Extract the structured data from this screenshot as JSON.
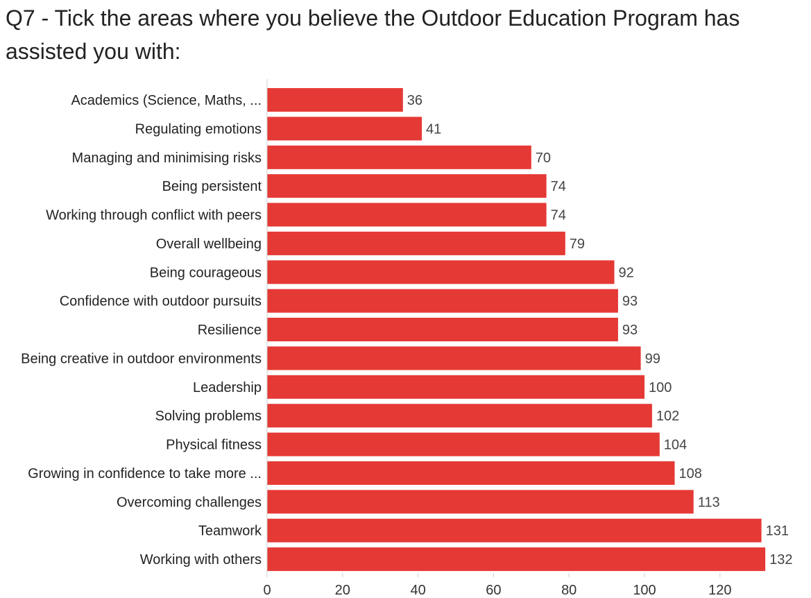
{
  "title": "Q7 - Tick the areas where you believe the Outdoor Education Program has assisted you with:",
  "colors": {
    "bar": "#e53935",
    "axis": "#cccccc"
  },
  "chart_data": {
    "type": "bar",
    "orientation": "horizontal",
    "categories": [
      "Academics (Science, Maths, ...",
      "Regulating emotions",
      "Managing and minimising risks",
      "Being persistent",
      "Working through conflict with peers",
      "Overall wellbeing",
      "Being courageous",
      "Confidence with outdoor pursuits",
      "Resilience",
      "Being creative in outdoor environments",
      "Leadership",
      "Solving problems",
      "Physical fitness",
      "Growing in confidence to take more ...",
      "Overcoming challenges",
      "Teamwork",
      "Working with others"
    ],
    "values": [
      36,
      41,
      70,
      74,
      74,
      79,
      92,
      93,
      93,
      99,
      100,
      102,
      104,
      108,
      113,
      131,
      132
    ],
    "xlim": [
      0,
      140
    ],
    "xticks": [
      0,
      20,
      40,
      60,
      80,
      100,
      120
    ],
    "data_labels": true,
    "grid": false,
    "legend": "none"
  }
}
